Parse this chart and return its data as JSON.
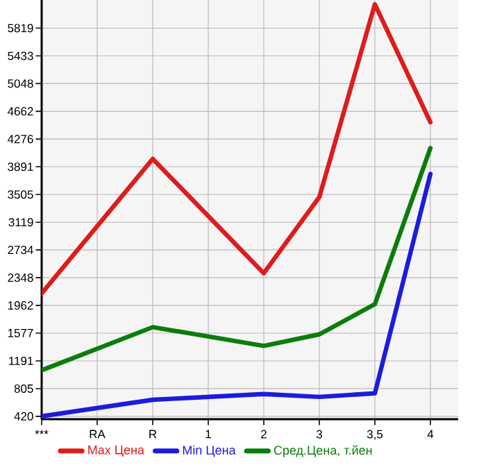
{
  "chart_data": {
    "type": "line",
    "categories": [
      "***",
      "RA",
      "R",
      "1",
      "2",
      "3",
      "3,5",
      "4"
    ],
    "series": [
      {
        "name": "Max Цена",
        "color": "#dd1c1c",
        "values": [
          2130,
          null,
          4000,
          null,
          2410,
          3470,
          6150,
          4510
        ]
      },
      {
        "name": "Min Цена",
        "color": "#1c1cdd",
        "values": [
          420,
          null,
          650,
          null,
          730,
          690,
          740,
          3790
        ]
      },
      {
        "name": "Сред.Цена, т.йен",
        "color": "#0a7d0a",
        "values": [
          1060,
          null,
          1660,
          null,
          1400,
          1560,
          1980,
          4150
        ]
      }
    ],
    "ylim": [
      380,
      6210
    ],
    "yticks": [
      420,
      805,
      1191,
      1577,
      1962,
      2348,
      2734,
      3119,
      3505,
      3891,
      4276,
      4662,
      5048,
      5433,
      5819
    ],
    "grid": true,
    "legend": "bottom",
    "marker": "none",
    "line_style": "solid"
  }
}
